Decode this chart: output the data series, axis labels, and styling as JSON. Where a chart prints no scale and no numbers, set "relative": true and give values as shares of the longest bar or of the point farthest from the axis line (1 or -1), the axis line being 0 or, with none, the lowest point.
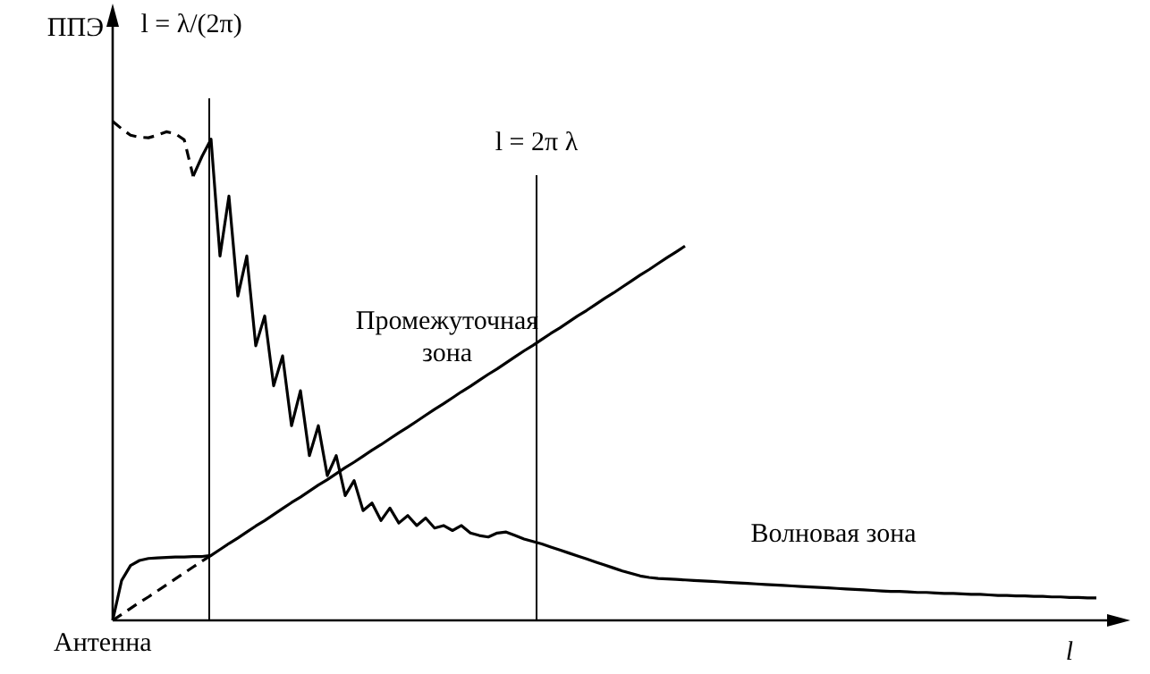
{
  "chart_data": {
    "type": "line",
    "relative": true,
    "ylabel": "ППЭ",
    "xlabel": "l",
    "legend": false,
    "marker": "none",
    "categories": [
      null,
      null,
      null,
      null,
      null,
      null,
      null,
      null,
      null,
      null,
      null,
      null,
      null,
      null,
      null,
      null,
      null,
      null,
      null,
      null,
      null,
      null,
      null,
      null,
      null,
      null,
      null,
      null,
      null,
      null,
      null,
      null,
      null,
      null,
      null,
      null,
      null,
      null,
      null,
      null,
      null,
      null,
      null,
      null,
      null,
      null,
      null,
      null,
      null,
      null,
      null,
      null,
      null,
      null,
      null,
      null,
      null,
      null,
      null,
      null,
      null,
      null,
      null,
      null,
      null,
      null,
      null,
      null,
      null,
      null,
      null,
      null,
      null,
      null,
      null,
      null,
      null,
      null,
      null,
      null,
      null,
      null,
      null,
      null,
      null,
      null,
      null,
      null,
      null,
      null,
      null,
      null,
      null,
      null,
      null,
      null,
      null,
      null,
      null,
      null,
      null,
      null,
      null,
      null,
      null,
      null,
      null,
      null,
      null,
      null,
      null,
      null,
      null
    ],
    "series": [
      {
        "color": "#000000",
        "line_style": "dashed",
        "values": [
          1.0,
          0.985,
          0.972,
          0.968,
          0.967,
          0.972,
          0.979,
          0.975,
          0.963,
          0.89,
          null,
          null,
          null,
          null,
          null,
          null,
          null,
          null,
          null,
          null,
          null,
          null,
          null,
          null,
          null,
          null,
          null,
          null,
          null,
          null,
          null,
          null,
          null,
          null,
          null,
          null,
          null,
          null,
          null,
          null,
          null,
          null,
          null,
          null,
          null,
          null,
          null,
          null,
          null,
          null,
          null,
          null,
          null,
          null,
          null,
          null,
          null,
          null,
          null,
          null,
          null,
          null,
          null,
          null,
          null,
          null,
          null,
          null,
          null,
          null,
          null,
          null,
          null,
          null,
          null,
          null,
          null,
          null,
          null,
          null,
          null,
          null,
          null,
          null,
          null,
          null,
          null,
          null,
          null,
          null,
          null,
          null,
          null,
          null,
          null,
          null,
          null,
          null,
          null,
          null,
          null,
          null,
          null,
          null,
          null,
          null,
          null,
          null,
          null,
          null,
          null,
          null,
          null
        ]
      },
      {
        "color": "#000000",
        "values": [
          null,
          null,
          null,
          null,
          null,
          null,
          null,
          null,
          null,
          0.89,
          0.93,
          0.964,
          0.73,
          0.85,
          0.65,
          0.73,
          0.55,
          0.61,
          0.47,
          0.53,
          0.39,
          0.46,
          0.33,
          0.39,
          0.29,
          0.33,
          0.25,
          0.28,
          0.22,
          0.235,
          0.2,
          0.225,
          0.195,
          0.21,
          0.19,
          0.205,
          0.185,
          0.19,
          0.18,
          0.19,
          0.175,
          0.17,
          0.167,
          0.175,
          0.177,
          0.17,
          0.163,
          0.158,
          0.153,
          0.147,
          0.141,
          0.135,
          0.129,
          0.123,
          0.117,
          0.111,
          0.105,
          0.099,
          0.094,
          0.089,
          0.086,
          0.084,
          0.083,
          0.082,
          0.081,
          0.08,
          0.079,
          0.078,
          0.077,
          0.076,
          0.075,
          0.074,
          0.073,
          0.072,
          0.071,
          0.07,
          0.069,
          0.068,
          0.067,
          0.066,
          0.065,
          0.064,
          0.063,
          0.062,
          0.061,
          0.06,
          0.059,
          0.058,
          0.058,
          0.057,
          0.056,
          0.056,
          0.055,
          0.054,
          0.054,
          0.053,
          0.052,
          0.052,
          0.051,
          0.05,
          0.05,
          0.049,
          0.049,
          0.048,
          0.048,
          0.047,
          0.047,
          0.046,
          0.046,
          0.045,
          0.045,
          null,
          null
        ]
      },
      {
        "color": "#000000",
        "values": [
          0,
          0.08,
          0.11,
          0.12,
          0.124,
          0.125,
          0.126,
          0.127,
          0.127,
          0.128,
          0.128,
          0.13,
          0.142,
          0.154,
          0.165,
          0.177,
          0.189,
          0.2,
          0.212,
          0.224,
          0.236,
          0.247,
          0.259,
          0.271,
          0.282,
          0.294,
          0.306,
          0.317,
          0.329,
          0.341,
          0.352,
          0.364,
          0.376,
          0.387,
          0.399,
          0.411,
          0.423,
          0.434,
          0.446,
          0.458,
          0.469,
          0.481,
          0.493,
          0.504,
          0.516,
          0.528,
          0.54,
          0.551,
          0.563,
          0.575,
          0.586,
          0.598,
          0.61,
          0.621,
          0.633,
          0.645,
          0.656,
          0.668,
          0.68,
          0.692,
          0.703,
          0.715,
          0.727,
          0.738,
          0.75,
          null,
          null,
          null,
          null,
          null,
          null,
          null,
          null,
          null,
          null,
          null,
          null,
          null,
          null,
          null,
          null,
          null,
          null,
          null,
          null,
          null,
          null,
          null,
          null,
          null,
          null,
          null,
          null,
          null,
          null,
          null,
          null,
          null,
          null,
          null,
          null,
          null,
          null,
          null,
          null,
          null,
          null,
          null,
          null,
          null,
          null,
          null,
          null
        ]
      },
      {
        "color": "#000000",
        "line_style": "dashed",
        "values": [
          0,
          0.012,
          0.024,
          0.036,
          0.047,
          0.059,
          0.071,
          0.083,
          0.095,
          0.107,
          0.119,
          0.13,
          null,
          null,
          null,
          null,
          null,
          null,
          null,
          null,
          null,
          null,
          null,
          null,
          null,
          null,
          null,
          null,
          null,
          null,
          null,
          null,
          null,
          null,
          null,
          null,
          null,
          null,
          null,
          null,
          null,
          null,
          null,
          null,
          null,
          null,
          null,
          null,
          null,
          null,
          null,
          null,
          null,
          null,
          null,
          null,
          null,
          null,
          null,
          null,
          null,
          null,
          null,
          null,
          null,
          null,
          null,
          null,
          null,
          null,
          null,
          null,
          null,
          null,
          null,
          null,
          null,
          null,
          null,
          null,
          null,
          null,
          null,
          null,
          null,
          null,
          null,
          null,
          null,
          null,
          null,
          null,
          null,
          null,
          null,
          null,
          null,
          null,
          null,
          null,
          null,
          null,
          null,
          null,
          null,
          null,
          null,
          null,
          null,
          null,
          null,
          null,
          null
        ]
      }
    ],
    "annotations": [
      "l = λ/(2π)",
      "l = 2π λ",
      "Промежуточная\nзона",
      "Волновая зона",
      "Антенна"
    ]
  }
}
